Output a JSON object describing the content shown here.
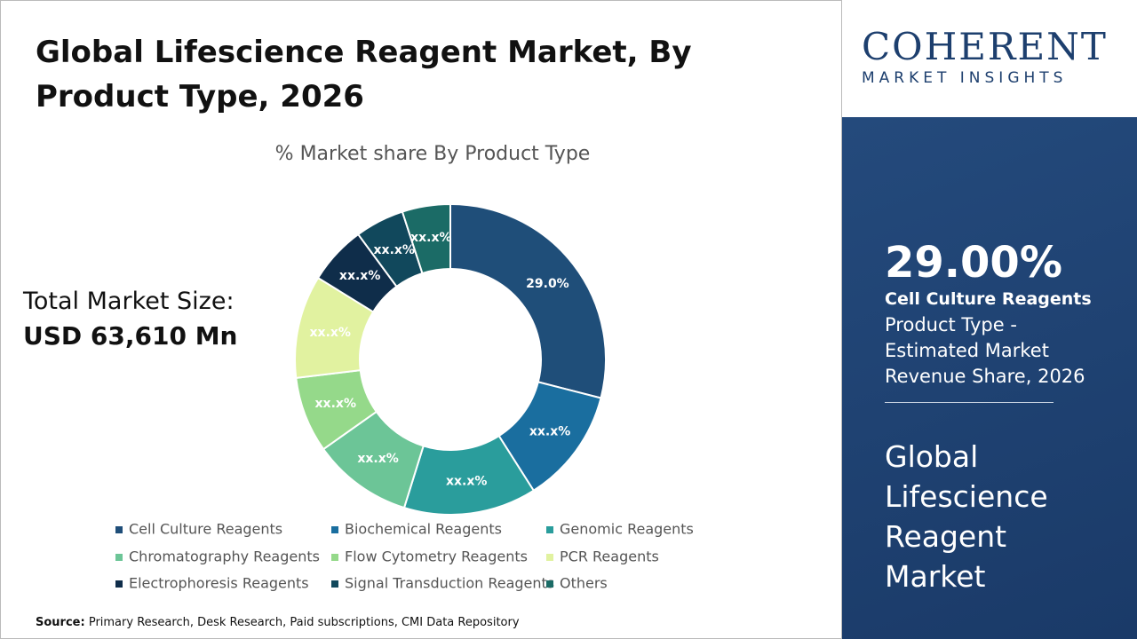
{
  "chart_data": {
    "type": "donut",
    "title": "Global Lifescience Reagent Market, By Product Type, 2026",
    "subtitle": "% Market share By Product Type",
    "categories": [
      "Cell Culture Reagents",
      "Biochemical Reagents",
      "Genomic Reagents",
      "Chromatography Reagents",
      "Flow Cytometry Reagents",
      "PCR Reagents",
      "Electrophoresis Reagents",
      "Signal Transduction Reagents",
      "Others"
    ],
    "values": [
      29.0,
      12.0,
      13.8,
      10.4,
      7.9,
      10.7,
      6.1,
      5.1,
      5.0
    ],
    "value_labels": [
      "29.0%",
      "xx.x%",
      "xx.x%",
      "xx.x%",
      "xx.x%",
      "xx.x%",
      "xx.x%",
      "xx.x%",
      "xx.x%"
    ],
    "colors": [
      "#1f4e79",
      "#1a6e9f",
      "#2a9d9c",
      "#6cc597",
      "#95d98a",
      "#e1f2a0",
      "#0f2d4a",
      "#11485c",
      "#1b6b66"
    ],
    "legend": "bottom"
  },
  "total_market": {
    "label": "Total Market Size:",
    "value": "USD 63,610 Mn"
  },
  "logo": {
    "name": "COHERENT",
    "tagline": "MARKET INSIGHTS"
  },
  "highlight": {
    "value": "29.00%",
    "segment": "Cell Culture Reagents",
    "description": "Product Type - Estimated Market Revenue Share, 2026",
    "market": "Global Lifescience Reagent Market"
  },
  "source": {
    "label": "Source:",
    "text": "Primary Research, Desk Research, Paid subscriptions, CMI Data Repository"
  }
}
